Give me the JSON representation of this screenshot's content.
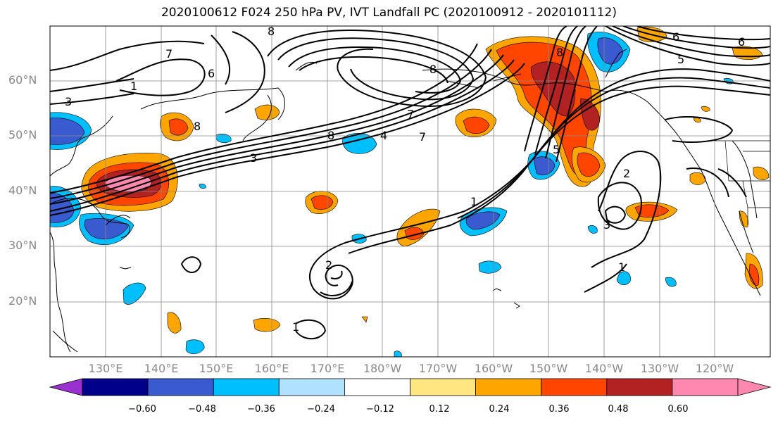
{
  "title": "2020100612 F024 250 hPa PV, IVT Landfall PC (2020100912 - 2020101112)",
  "lat_labels": [
    "60°N",
    "50°N",
    "40°N",
    "30°N",
    "20°N"
  ],
  "lon_labels": [
    "130°E",
    "140°E",
    "150°E",
    "160°E",
    "170°E",
    "180°W",
    "170°W",
    "160°W",
    "150°W",
    "140°W",
    "130°W",
    "120°W"
  ],
  "contour_labels": [
    "1",
    "2",
    "3",
    "4",
    "5",
    "6",
    "7",
    "8"
  ],
  "colorbar": {
    "ticks": [
      "−0.60",
      "−0.48",
      "−0.36",
      "−0.24",
      "−0.12",
      "0.12",
      "0.24",
      "0.36",
      "0.48",
      "0.60"
    ],
    "colors": [
      "#9b30d0",
      "#00008b",
      "#3a5bd0",
      "#00bfff",
      "#b0e2ff",
      "#ffffff",
      "#ffe680",
      "#ffa500",
      "#ff4500",
      "#b22222",
      "#ff88b0",
      "#ff88b0"
    ]
  },
  "colors": {
    "neg_strong": "#3a5bd0",
    "neg_mid": "#00bfff",
    "neg_weak": "#b0e2ff",
    "pos_weak": "#ffe680",
    "pos_mid": "#ffa500",
    "pos_strong": "#ff4500",
    "pos_vstrong": "#b22222",
    "pos_max": "#ff88b0"
  }
}
